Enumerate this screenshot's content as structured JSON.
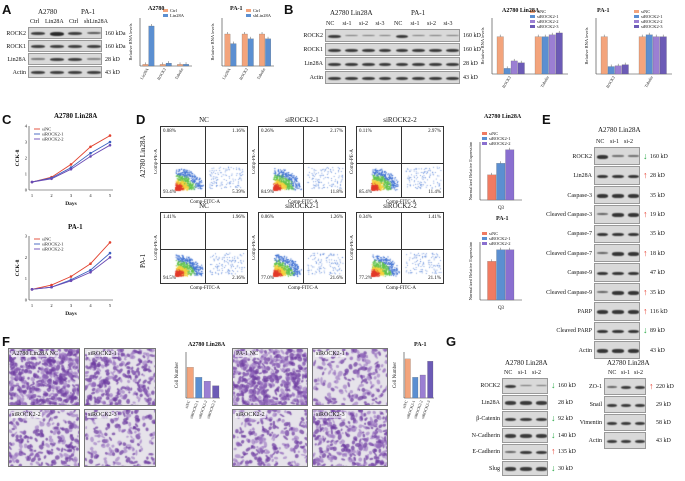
{
  "panels": {
    "A": {
      "letter": "A",
      "cell_lines": [
        "A2780",
        "PA-1"
      ],
      "lanes": [
        "Ctrl",
        "Lin28A",
        "Ctrl",
        "shLin28A"
      ],
      "rows": [
        {
          "label": "ROCK2",
          "mw": "160 kDa"
        },
        {
          "label": "ROCK1",
          "mw": "160 kDa"
        },
        {
          "label": "Lin28A",
          "mw": "28 kD"
        },
        {
          "label": "Actin",
          "mw": "43 kD"
        }
      ],
      "chart1": {
        "title": "A2780",
        "legend": [
          "Ctrl",
          "Lin28A"
        ],
        "ylabel": "Relative RNA levels",
        "categories": [
          "Lin28A",
          "ROCK2",
          "Tubulin"
        ]
      },
      "chart2": {
        "title": "PA-1",
        "legend": [
          "Ctrl",
          "shLin28A"
        ],
        "ylabel": "Relative RNA levels",
        "categories": [
          "Lin28A",
          "ROCK2",
          "Tubulin"
        ]
      }
    },
    "B": {
      "letter": "B",
      "cell_lines": [
        "A2780 Lin28A",
        "PA-1"
      ],
      "lanes": [
        "NC",
        "si-1",
        "si-2",
        "si-3",
        "NC",
        "si-1",
        "si-2",
        "si-3"
      ],
      "rows": [
        {
          "label": "ROCK2",
          "mw": "160 kD"
        },
        {
          "label": "ROCK1",
          "mw": "160 kD"
        },
        {
          "label": "Lin28A",
          "mw": "28 kD"
        },
        {
          "label": "Actin",
          "mw": "43 kD"
        }
      ],
      "chart1": {
        "title": "A2780 Lin28A",
        "legend": [
          "siNC",
          "siROCK2-1",
          "siROCK2-2",
          "siROCK2-3"
        ],
        "ylabel": "Relative RNA levels",
        "categories": [
          "ROCK2",
          "Tubulin"
        ]
      },
      "chart2": {
        "title": "PA-1",
        "legend": [
          "siNC",
          "siROCK2-1",
          "siROCK2-2",
          "siROCK2-3"
        ],
        "ylabel": "Relative RNA levels",
        "categories": [
          "ROCK2",
          "Tubulin"
        ]
      }
    },
    "C": {
      "letter": "C",
      "top": {
        "title": "A2780 Lin28A",
        "legend": [
          "siNC",
          "siROCK2-1",
          "siROCK2-2"
        ],
        "ylabel": "CCK-8",
        "xlabel": "Days",
        "xticks": [
          "1",
          "2",
          "3",
          "4",
          "5"
        ],
        "yticks": [
          "0",
          "1",
          "2",
          "3",
          "4"
        ]
      },
      "bottom": {
        "title": "PA-1",
        "legend": [
          "siNC",
          "siROCK2-1",
          "siROCK2-2"
        ],
        "ylabel": "CCK-8",
        "xlabel": "Days",
        "xticks": [
          "1",
          "2",
          "3",
          "4",
          "5"
        ],
        "yticks": [
          "0",
          "1",
          "2",
          "3"
        ]
      }
    },
    "D": {
      "letter": "D",
      "row_labels": [
        "A2780 Lin28A",
        "PA-1"
      ],
      "titles": [
        "NC",
        "siROCK2-1",
        "siROCK2-2"
      ],
      "axis_x": "Comp-FITC-A",
      "axis_y": "Comp-PE-A",
      "quadrants_top": [
        [
          "0.08%",
          "1.16%",
          "93.4%",
          "5.39%"
        ],
        [
          "0.26%",
          "2.17%",
          "84.9%",
          "11.8%"
        ],
        [
          "0.11%",
          "2.97%",
          "85.4%",
          "11.4%"
        ]
      ],
      "quadrants_bottom": [
        [
          "1.41%",
          "1.96%",
          "94.5%",
          "2.16%"
        ],
        [
          "0.06%",
          "1.26%",
          "77.0%",
          "21.6%"
        ],
        [
          "0.34%",
          "1.41%",
          "77.2%",
          "21.1%"
        ]
      ],
      "bar_top": {
        "title": "A2780 Lin28A",
        "legend": [
          "siNC",
          "siROCK2-1",
          "siROCK2-2"
        ],
        "ylabel": "Normalized Relative Expression",
        "xlabel": "Q3"
      },
      "bar_bottom": {
        "title": "PA-1",
        "legend": [
          "siNC",
          "siROCK2-1",
          "siROCK2-2"
        ],
        "ylabel": "Normalized Relative Expression",
        "xlabel": "Q3"
      }
    },
    "E": {
      "letter": "E",
      "title": "A2780 Lin28A",
      "lanes": [
        "NC",
        "si-1",
        "si-2"
      ],
      "rows": [
        {
          "label": "ROCK2",
          "mw": "160 kD",
          "arrow": "down"
        },
        {
          "label": "Lin28A",
          "mw": "28 kD",
          "arrow": "up"
        },
        {
          "label": "Caspase-3",
          "mw": "35 kD",
          "arrow": "none"
        },
        {
          "label": "Cleaved Caspase-3",
          "mw": "19 kD",
          "arrow": "up"
        },
        {
          "label": "Caspase-7",
          "mw": "35 kD",
          "arrow": "none"
        },
        {
          "label": "Cleaved Caspase-7",
          "mw": "18 kD",
          "arrow": "up"
        },
        {
          "label": "Caspase-9",
          "mw": "47 kD",
          "arrow": "none"
        },
        {
          "label": "Cleaved Caspase-9",
          "mw": "35 kD",
          "arrow": "up"
        },
        {
          "label": "PARP",
          "mw": "116 kD",
          "arrow": "up"
        },
        {
          "label": "Cleaved PARP",
          "mw": "89 kD",
          "arrow": "down"
        },
        {
          "label": "Actin",
          "mw": "43 kD",
          "arrow": "none"
        }
      ]
    },
    "F": {
      "letter": "F",
      "images_a2780": [
        "A2780 Lin28A NC",
        "siROCK2-1",
        "siROCK2-2",
        "siROCK2-3"
      ],
      "images_pa1": [
        "PA-1 NC",
        "siROCK2-1",
        "siROCK2-2",
        "siROCK2-3"
      ],
      "bar_a2780": {
        "title": "A2780 Lin28A",
        "ylabel": "Cell Number",
        "categories": [
          "siNC",
          "siROCK2-1",
          "siROCK2-2",
          "siROCK2-3"
        ]
      },
      "bar_pa1": {
        "title": "PA-1",
        "ylabel": "Cell Number",
        "categories": [
          "siNC",
          "siROCK2-1",
          "siROCK2-2",
          "siROCK2-3"
        ]
      }
    },
    "G": {
      "letter": "G",
      "title_left": "A2780 Lin28A",
      "title_right": "A2780 Lin28A",
      "lanes": [
        "NC",
        "si-1",
        "si-2"
      ],
      "rows_left": [
        {
          "label": "ROCK2",
          "mw": "160 kD",
          "arrow": "down"
        },
        {
          "label": "Lin28A",
          "mw": "28 kD",
          "arrow": "none"
        },
        {
          "label": "β-Catenin",
          "mw": "92 kD",
          "arrow": "down"
        },
        {
          "label": "N-Cadherin",
          "mw": "140 kD",
          "arrow": "down"
        },
        {
          "label": "E-Cadherin",
          "mw": "135 kD",
          "arrow": "up"
        },
        {
          "label": "Slug",
          "mw": "30 kD",
          "arrow": "down"
        }
      ],
      "rows_right": [
        {
          "label": "ZO-1",
          "mw": "220 kD",
          "arrow": "up"
        },
        {
          "label": "Snail",
          "mw": "29 kD",
          "arrow": "none"
        },
        {
          "label": "Vimentin",
          "mw": "58 kD",
          "arrow": "none"
        },
        {
          "label": "Actin",
          "mw": "43 kD",
          "arrow": "none"
        }
      ]
    }
  },
  "chart_data": [
    {
      "type": "bar",
      "id": "A1",
      "title": "A2780",
      "categories": [
        "Lin28A",
        "ROCK2",
        "Tubulin"
      ],
      "series": [
        {
          "name": "Ctrl",
          "values": [
            1,
            1,
            1
          ]
        },
        {
          "name": "Lin28A",
          "values": [
            25,
            1.8,
            1.1
          ]
        }
      ],
      "ylabel": "Relative RNA levels",
      "ylim": [
        0,
        30
      ]
    },
    {
      "type": "bar",
      "id": "A2",
      "title": "PA-1",
      "categories": [
        "Lin28A",
        "ROCK2",
        "Tubulin"
      ],
      "series": [
        {
          "name": "Ctrl",
          "values": [
            1,
            1,
            1
          ]
        },
        {
          "name": "shLin28A",
          "values": [
            0.7,
            0.85,
            0.85
          ]
        }
      ],
      "ylabel": "Relative RNA levels",
      "ylim": [
        0,
        1.5
      ]
    },
    {
      "type": "bar",
      "id": "B1",
      "title": "A2780 Lin28A",
      "categories": [
        "ROCK2",
        "Tubulin"
      ],
      "series": [
        {
          "name": "siNC",
          "values": [
            1,
            1
          ]
        },
        {
          "name": "siROCK2-1",
          "values": [
            0.15,
            1.0
          ]
        },
        {
          "name": "siROCK2-2",
          "values": [
            0.35,
            1.05
          ]
        },
        {
          "name": "siROCK2-3",
          "values": [
            0.3,
            1.1
          ]
        }
      ],
      "ylabel": "Relative RNA levels",
      "ylim": [
        0,
        1.5
      ]
    },
    {
      "type": "bar",
      "id": "B2",
      "title": "PA-1",
      "categories": [
        "ROCK2",
        "Tubulin"
      ],
      "series": [
        {
          "name": "siNC",
          "values": [
            1,
            1
          ]
        },
        {
          "name": "siROCK2-1",
          "values": [
            0.2,
            1.05
          ]
        },
        {
          "name": "siROCK2-2",
          "values": [
            0.22,
            1.0
          ]
        },
        {
          "name": "siROCK2-3",
          "values": [
            0.25,
            1.0
          ]
        }
      ],
      "ylabel": "Relative RNA levels",
      "ylim": [
        0,
        1.5
      ]
    },
    {
      "type": "line",
      "id": "C1",
      "title": "A2780 Lin28A",
      "x": [
        1,
        2,
        3,
        4,
        5
      ],
      "series": [
        {
          "name": "siNC",
          "values": [
            0.5,
            0.8,
            1.6,
            2.7,
            3.4
          ]
        },
        {
          "name": "siROCK2-1",
          "values": [
            0.5,
            0.75,
            1.4,
            2.3,
            3.0
          ]
        },
        {
          "name": "siROCK2-2",
          "values": [
            0.5,
            0.7,
            1.3,
            2.1,
            2.8
          ]
        }
      ],
      "xlabel": "Days",
      "ylabel": "CCK-8",
      "ylim": [
        0,
        4
      ]
    },
    {
      "type": "line",
      "id": "C2",
      "title": "PA-1",
      "x": [
        1,
        2,
        3,
        4,
        5
      ],
      "series": [
        {
          "name": "siNC",
          "values": [
            0.5,
            0.7,
            1.1,
            1.7,
            2.7
          ]
        },
        {
          "name": "siROCK2-1",
          "values": [
            0.5,
            0.6,
            0.95,
            1.4,
            2.2
          ]
        },
        {
          "name": "siROCK2-2",
          "values": [
            0.5,
            0.6,
            0.9,
            1.3,
            2.0
          ]
        }
      ],
      "xlabel": "Days",
      "ylabel": "CCK-8",
      "ylim": [
        0,
        3
      ]
    },
    {
      "type": "bar",
      "id": "D1",
      "title": "A2780 Lin28A",
      "categories": [
        "Q3"
      ],
      "series": [
        {
          "name": "siNC",
          "values": [
            6.5
          ]
        },
        {
          "name": "siROCK2-1",
          "values": [
            9.5
          ]
        },
        {
          "name": "siROCK2-2",
          "values": [
            13
          ]
        }
      ],
      "ylabel": "Normalized Relative Expression",
      "ylim": [
        0,
        15
      ]
    },
    {
      "type": "bar",
      "id": "D2",
      "title": "PA-1",
      "categories": [
        "Q3"
      ],
      "series": [
        {
          "name": "siNC",
          "values": [
            20
          ]
        },
        {
          "name": "siROCK2-1",
          "values": [
            26
          ]
        },
        {
          "name": "siROCK2-2",
          "values": [
            26
          ]
        }
      ],
      "ylabel": "Normalized Relative Expression",
      "ylim": [
        0,
        30
      ]
    },
    {
      "type": "bar",
      "id": "F1",
      "title": "A2780 Lin28A",
      "categories": [
        "siNC",
        "siROCK2-1",
        "siROCK2-2",
        "siROCK2-3"
      ],
      "values": [
        200,
        135,
        110,
        80
      ],
      "ylabel": "Cell Number",
      "ylim": [
        0,
        300
      ]
    },
    {
      "type": "bar",
      "id": "F2",
      "title": "PA-1",
      "categories": [
        "siNC",
        "siROCK2-1",
        "siROCK2-2",
        "siROCK2-3"
      ],
      "values": [
        850,
        450,
        500,
        800
      ],
      "ylabel": "Cell Number",
      "ylim": [
        0,
        1000
      ]
    }
  ]
}
